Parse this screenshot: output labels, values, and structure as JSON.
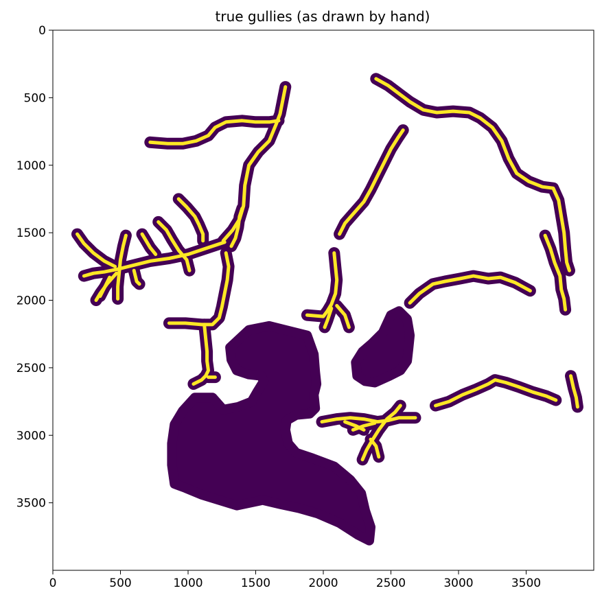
{
  "chart_data": {
    "type": "heatmap",
    "title": "true gullies (as drawn by hand)",
    "xlabel": "",
    "ylabel": "",
    "xlim": [
      0,
      4000
    ],
    "ylim": [
      4000,
      0
    ],
    "y_inverted": true,
    "x_ticks": [
      0,
      500,
      1000,
      1500,
      2000,
      2500,
      3000,
      3500
    ],
    "x_tick_labels": [
      "0",
      "500",
      "1000",
      "1500",
      "2000",
      "2500",
      "3000",
      "3500"
    ],
    "y_ticks": [
      0,
      500,
      1000,
      1500,
      2000,
      2500,
      3000,
      3500
    ],
    "y_tick_labels": [
      "0",
      "500",
      "1000",
      "1500",
      "2000",
      "2500",
      "3000",
      "3500"
    ],
    "grid": false,
    "colors": {
      "background": "#ffffff",
      "region": "#440154",
      "centerline": "#fde725"
    },
    "gullies": [
      {
        "points": [
          [
            1720,
            420
          ],
          [
            1700,
            520
          ],
          [
            1680,
            620
          ],
          [
            1650,
            700
          ],
          [
            1600,
            820
          ],
          [
            1520,
            900
          ],
          [
            1450,
            1000
          ],
          [
            1420,
            1150
          ],
          [
            1410,
            1300
          ],
          [
            1380,
            1400
          ],
          [
            1330,
            1480
          ],
          [
            1260,
            1560
          ]
        ]
      },
      {
        "points": [
          [
            720,
            830
          ],
          [
            850,
            840
          ],
          [
            960,
            840
          ],
          [
            1060,
            820
          ],
          [
            1150,
            780
          ],
          [
            1200,
            720
          ],
          [
            1280,
            680
          ],
          [
            1400,
            670
          ],
          [
            1500,
            680
          ],
          [
            1600,
            680
          ],
          [
            1670,
            670
          ]
        ]
      },
      {
        "points": [
          [
            1270,
            1570
          ],
          [
            1150,
            1610
          ],
          [
            1000,
            1660
          ],
          [
            860,
            1690
          ],
          [
            720,
            1710
          ],
          [
            600,
            1740
          ],
          [
            480,
            1770
          ],
          [
            380,
            1790
          ],
          [
            300,
            1800
          ],
          [
            230,
            1820
          ]
        ]
      },
      {
        "points": [
          [
            180,
            1510
          ],
          [
            230,
            1580
          ],
          [
            300,
            1650
          ],
          [
            380,
            1710
          ],
          [
            460,
            1750
          ]
        ]
      },
      {
        "points": [
          [
            540,
            1520
          ],
          [
            520,
            1600
          ],
          [
            500,
            1700
          ],
          [
            490,
            1800
          ],
          [
            480,
            1900
          ],
          [
            480,
            1990
          ]
        ]
      },
      {
        "points": [
          [
            470,
            1800
          ],
          [
            400,
            1880
          ],
          [
            350,
            1950
          ],
          [
            320,
            2000
          ]
        ]
      },
      {
        "points": [
          [
            420,
            1830
          ],
          [
            380,
            1910
          ],
          [
            350,
            1970
          ]
        ]
      },
      {
        "points": [
          [
            660,
            1510
          ],
          [
            690,
            1560
          ],
          [
            720,
            1610
          ],
          [
            760,
            1660
          ]
        ]
      },
      {
        "points": [
          [
            600,
            1780
          ],
          [
            620,
            1860
          ],
          [
            640,
            1880
          ]
        ]
      },
      {
        "points": [
          [
            780,
            1420
          ],
          [
            840,
            1480
          ],
          [
            880,
            1550
          ],
          [
            930,
            1630
          ],
          [
            990,
            1700
          ],
          [
            1010,
            1780
          ]
        ]
      },
      {
        "points": [
          [
            930,
            1250
          ],
          [
            990,
            1310
          ],
          [
            1050,
            1380
          ],
          [
            1080,
            1440
          ],
          [
            1110,
            1510
          ],
          [
            1110,
            1560
          ]
        ]
      },
      {
        "points": [
          [
            1280,
            1650
          ],
          [
            1300,
            1750
          ],
          [
            1290,
            1850
          ],
          [
            1270,
            1950
          ],
          [
            1250,
            2050
          ],
          [
            1230,
            2130
          ],
          [
            1180,
            2180
          ],
          [
            1100,
            2180
          ],
          [
            980,
            2170
          ],
          [
            860,
            2170
          ]
        ]
      },
      {
        "points": [
          [
            1120,
            2180
          ],
          [
            1130,
            2280
          ],
          [
            1140,
            2380
          ],
          [
            1140,
            2450
          ],
          [
            1150,
            2520
          ],
          [
            1130,
            2560
          ],
          [
            1100,
            2590
          ],
          [
            1040,
            2620
          ]
        ]
      },
      {
        "points": [
          [
            1200,
            2570
          ],
          [
            1150,
            2570
          ]
        ]
      },
      {
        "points": [
          [
            1320,
            1600
          ],
          [
            1350,
            1540
          ],
          [
            1370,
            1460
          ],
          [
            1380,
            1380
          ],
          [
            1400,
            1320
          ]
        ]
      },
      {
        "points": [
          [
            2590,
            740
          ],
          [
            2550,
            800
          ],
          [
            2500,
            880
          ],
          [
            2450,
            980
          ],
          [
            2400,
            1080
          ],
          [
            2350,
            1180
          ],
          [
            2300,
            1270
          ],
          [
            2230,
            1350
          ],
          [
            2160,
            1430
          ],
          [
            2120,
            1510
          ]
        ]
      },
      {
        "points": [
          [
            2080,
            1650
          ],
          [
            2090,
            1750
          ],
          [
            2100,
            1850
          ],
          [
            2090,
            1950
          ],
          [
            2060,
            2030
          ],
          [
            2030,
            2080
          ],
          [
            2000,
            2120
          ],
          [
            1880,
            2110
          ]
        ]
      },
      {
        "points": [
          [
            2100,
            2040
          ],
          [
            2160,
            2110
          ],
          [
            2190,
            2200
          ]
        ]
      },
      {
        "points": [
          [
            2060,
            2060
          ],
          [
            2030,
            2150
          ],
          [
            2010,
            2200
          ]
        ]
      },
      {
        "points": [
          [
            2390,
            360
          ],
          [
            2480,
            410
          ],
          [
            2560,
            470
          ],
          [
            2640,
            530
          ],
          [
            2740,
            590
          ],
          [
            2840,
            610
          ],
          [
            2960,
            600
          ],
          [
            3080,
            610
          ],
          [
            3160,
            650
          ],
          [
            3250,
            720
          ],
          [
            3320,
            820
          ],
          [
            3370,
            950
          ],
          [
            3430,
            1060
          ],
          [
            3520,
            1120
          ],
          [
            3620,
            1160
          ],
          [
            3700,
            1170
          ],
          [
            3740,
            1260
          ],
          [
            3760,
            1380
          ],
          [
            3780,
            1500
          ],
          [
            3790,
            1620
          ],
          [
            3800,
            1720
          ],
          [
            3820,
            1780
          ]
        ]
      },
      {
        "points": [
          [
            3640,
            1520
          ],
          [
            3680,
            1620
          ],
          [
            3710,
            1720
          ],
          [
            3750,
            1820
          ],
          [
            3760,
            1920
          ],
          [
            3780,
            1990
          ],
          [
            3790,
            2070
          ]
        ]
      },
      {
        "points": [
          [
            2640,
            2020
          ],
          [
            2710,
            1950
          ],
          [
            2810,
            1880
          ],
          [
            2900,
            1860
          ],
          [
            3010,
            1840
          ],
          [
            3110,
            1820
          ],
          [
            3220,
            1840
          ],
          [
            3310,
            1830
          ],
          [
            3420,
            1870
          ],
          [
            3530,
            1930
          ]
        ]
      },
      {
        "points": [
          [
            2830,
            2780
          ],
          [
            2930,
            2750
          ],
          [
            3030,
            2700
          ],
          [
            3130,
            2660
          ],
          [
            3220,
            2620
          ],
          [
            3270,
            2590
          ],
          [
            3350,
            2610
          ],
          [
            3440,
            2640
          ],
          [
            3550,
            2680
          ],
          [
            3650,
            2710
          ],
          [
            3720,
            2740
          ]
        ]
      },
      {
        "points": [
          [
            3830,
            2560
          ],
          [
            3850,
            2650
          ],
          [
            3870,
            2720
          ],
          [
            3880,
            2790
          ]
        ]
      },
      {
        "points": [
          [
            1990,
            2900
          ],
          [
            2100,
            2880
          ],
          [
            2200,
            2870
          ],
          [
            2300,
            2880
          ],
          [
            2400,
            2900
          ],
          [
            2480,
            2890
          ],
          [
            2560,
            2870
          ],
          [
            2680,
            2870
          ]
        ]
      },
      {
        "points": [
          [
            2220,
            2960
          ],
          [
            2300,
            2930
          ],
          [
            2380,
            2910
          ]
        ]
      },
      {
        "points": [
          [
            2290,
            3180
          ],
          [
            2320,
            3110
          ],
          [
            2360,
            3040
          ],
          [
            2410,
            2960
          ],
          [
            2470,
            2880
          ],
          [
            2530,
            2830
          ],
          [
            2570,
            2780
          ]
        ]
      },
      {
        "points": [
          [
            2350,
            3030
          ],
          [
            2390,
            3080
          ],
          [
            2410,
            3160
          ]
        ]
      },
      {
        "points": [
          [
            2160,
            2900
          ],
          [
            2240,
            2930
          ],
          [
            2300,
            2960
          ]
        ]
      }
    ],
    "blobs": [
      {
        "points": [
          [
            1450,
            2220
          ],
          [
            1600,
            2190
          ],
          [
            1760,
            2230
          ],
          [
            1880,
            2260
          ],
          [
            1930,
            2400
          ],
          [
            1940,
            2530
          ],
          [
            1950,
            2620
          ],
          [
            1930,
            2700
          ],
          [
            1940,
            2800
          ],
          [
            1900,
            2840
          ],
          [
            1800,
            2850
          ],
          [
            1730,
            2890
          ],
          [
            1720,
            2960
          ],
          [
            1740,
            3060
          ],
          [
            1800,
            3130
          ],
          [
            1920,
            3170
          ],
          [
            2080,
            3230
          ],
          [
            2200,
            3330
          ],
          [
            2280,
            3430
          ],
          [
            2310,
            3560
          ],
          [
            2350,
            3680
          ],
          [
            2340,
            3780
          ],
          [
            2260,
            3740
          ],
          [
            2120,
            3650
          ],
          [
            1960,
            3580
          ],
          [
            1820,
            3540
          ],
          [
            1680,
            3510
          ],
          [
            1550,
            3480
          ],
          [
            1360,
            3520
          ],
          [
            1230,
            3480
          ],
          [
            1100,
            3440
          ],
          [
            980,
            3390
          ],
          [
            900,
            3360
          ],
          [
            880,
            3220
          ],
          [
            880,
            3060
          ],
          [
            900,
            2920
          ],
          [
            960,
            2820
          ],
          [
            1050,
            2720
          ],
          [
            1180,
            2720
          ],
          [
            1260,
            2810
          ],
          [
            1370,
            2790
          ],
          [
            1470,
            2750
          ],
          [
            1510,
            2680
          ],
          [
            1560,
            2600
          ],
          [
            1540,
            2560
          ],
          [
            1450,
            2550
          ],
          [
            1360,
            2520
          ],
          [
            1320,
            2440
          ],
          [
            1310,
            2350
          ]
        ]
      },
      {
        "points": [
          [
            2500,
            2110
          ],
          [
            2560,
            2080
          ],
          [
            2620,
            2140
          ],
          [
            2640,
            2260
          ],
          [
            2630,
            2360
          ],
          [
            2620,
            2450
          ],
          [
            2570,
            2520
          ],
          [
            2490,
            2560
          ],
          [
            2380,
            2610
          ],
          [
            2310,
            2600
          ],
          [
            2250,
            2560
          ],
          [
            2240,
            2460
          ],
          [
            2290,
            2380
          ],
          [
            2360,
            2320
          ],
          [
            2440,
            2240
          ]
        ]
      }
    ]
  }
}
